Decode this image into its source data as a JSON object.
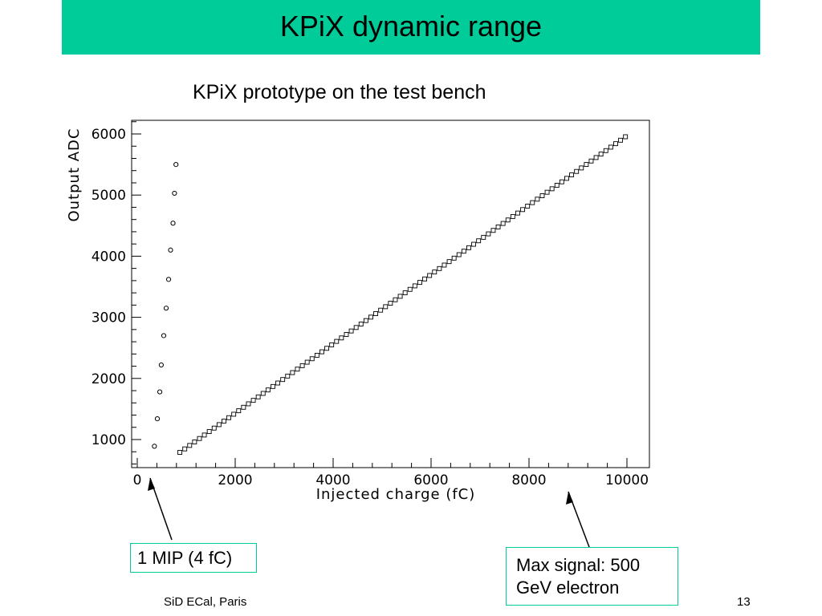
{
  "slide": {
    "title": "KPiX dynamic range",
    "footer_left": "SiD ECal, Paris",
    "page_number": "13"
  },
  "colors": {
    "title_bar": "#00cc99",
    "annotation_border": "#00cc99"
  },
  "annotations": {
    "mip": "1 MIP (4 fC)",
    "max_line1": "Max signal: 500",
    "max_line2": "GeV electron"
  },
  "chart_data": {
    "type": "scatter",
    "title": "KPiX prototype on the test bench",
    "xlabel": "Injected  charge  (fC)",
    "ylabel": "Output  ADC",
    "xlim": [
      0,
      10000
    ],
    "ylim": [
      550,
      6200
    ],
    "x_ticks": [
      0,
      2000,
      4000,
      6000,
      8000,
      10000
    ],
    "y_ticks": [
      1000,
      2000,
      3000,
      4000,
      5000,
      6000
    ],
    "grid": false,
    "series": [
      {
        "marker": "circle",
        "x": [
          350,
          410,
          460,
          490,
          540,
          590,
          640,
          680,
          730,
          760,
          790
        ],
        "y": [
          890,
          1340,
          1780,
          2220,
          2700,
          3150,
          3620,
          4100,
          4540,
          5030,
          5500
        ]
      },
      {
        "marker": "square",
        "x_start": 870,
        "x_end": 9980,
        "step": 100,
        "y_start": 790,
        "y_end": 5960
      }
    ]
  }
}
